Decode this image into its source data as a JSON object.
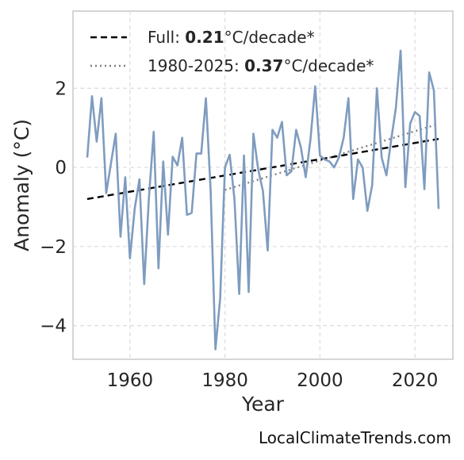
{
  "credit": "LocalClimateTrends.com",
  "colors": {
    "series": "#7f9cbf",
    "full_trend": "#000000",
    "recent_trend": "#808080",
    "grid": "#dcdcdc",
    "frame": "#cccccc"
  },
  "chart_data": {
    "type": "line",
    "title": "",
    "xlabel": "Year",
    "ylabel": "Anomaly (°C)",
    "xlim": [
      1948,
      2028
    ],
    "ylim": [
      -4.85,
      3.95
    ],
    "xticks": [
      1960,
      1980,
      2000,
      2020
    ],
    "yticks": [
      2,
      0,
      -2,
      -4
    ],
    "ytick_labels": [
      "2",
      "0",
      "−2",
      "−4"
    ],
    "grid": true,
    "legend_position": "top-left",
    "legend": [
      {
        "style": "dashed",
        "prefix": "Full: ",
        "value": "0.21",
        "suffix": "°C/decade*"
      },
      {
        "style": "dotted",
        "prefix": "1980-2025: ",
        "value": "0.37",
        "suffix": "°C/decade*"
      }
    ],
    "series": [
      {
        "x": [
          1951,
          1952,
          1953,
          1954,
          1955,
          1956,
          1957,
          1958,
          1959,
          1960,
          1961,
          1962,
          1963,
          1964,
          1965,
          1966,
          1967,
          1968,
          1969,
          1970,
          1971,
          1972,
          1973,
          1974,
          1975,
          1976,
          1977,
          1978,
          1979,
          1980,
          1981,
          1982,
          1983,
          1984,
          1985,
          1986,
          1987,
          1988,
          1989,
          1990,
          1991,
          1992,
          1993,
          1994,
          1995,
          1996,
          1997,
          1998,
          1999,
          2000,
          2001,
          2002,
          2003,
          2004,
          2005,
          2006,
          2007,
          2008,
          2009,
          2010,
          2011,
          2012,
          2013,
          2014,
          2015,
          2016,
          2017,
          2018,
          2019,
          2020,
          2021,
          2022,
          2023,
          2024,
          2025
        ],
        "y": [
          0.25,
          1.8,
          0.65,
          1.75,
          -0.65,
          0.1,
          0.85,
          -1.75,
          -0.25,
          -2.3,
          -1.05,
          -0.3,
          -2.95,
          -0.75,
          0.9,
          -2.55,
          0.15,
          -1.7,
          0.27,
          0.05,
          0.75,
          -1.2,
          -1.15,
          0.35,
          0.35,
          1.75,
          -0.6,
          -4.6,
          -3.3,
          0.0,
          0.32,
          -0.8,
          -3.2,
          0.3,
          -3.15,
          0.85,
          -0.05,
          -0.6,
          -2.1,
          0.95,
          0.75,
          1.15,
          -0.2,
          -0.1,
          0.95,
          0.5,
          -0.25,
          0.7,
          2.05,
          0.3,
          0.2,
          0.15,
          0.0,
          0.25,
          0.75,
          1.75,
          -0.8,
          0.2,
          0.0,
          -1.1,
          -0.45,
          2.0,
          0.25,
          -0.2,
          0.7,
          1.5,
          2.95,
          -0.5,
          1.1,
          1.4,
          1.3,
          -0.55,
          2.4,
          1.95,
          -1.05
        ]
      }
    ],
    "trends": [
      {
        "name": "full",
        "x": [
          1951,
          2025
        ],
        "y": [
          -0.8,
          0.72
        ]
      },
      {
        "name": "recent",
        "x": [
          1980,
          2025
        ],
        "y": [
          -0.57,
          1.1
        ]
      }
    ]
  }
}
